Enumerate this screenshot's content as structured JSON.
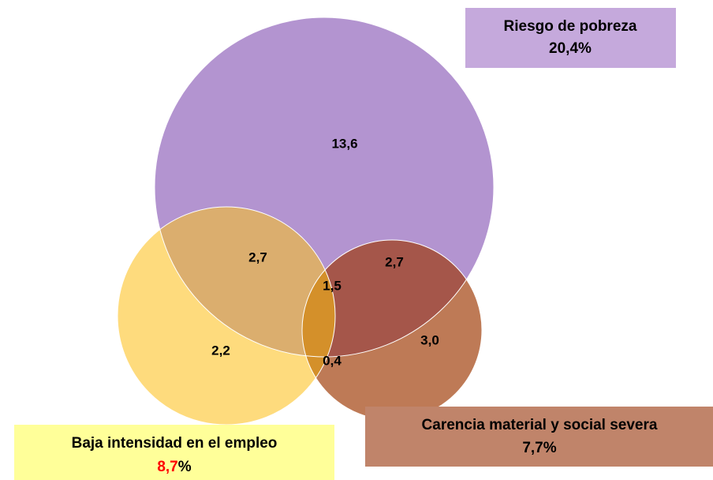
{
  "sets": [
    {
      "name": "Riesgo de pobreza",
      "value": "20,4",
      "unit": "%"
    },
    {
      "name": "Baja intensidad en el empleo",
      "value": "8,7",
      "unit": "%"
    },
    {
      "name": "Carencia material y social severa",
      "value": "7,7",
      "unit": "%"
    }
  ],
  "regions": [
    "13,6",
    "2,7",
    "1,5",
    "2,7",
    "2,2",
    "0,4",
    "3,0"
  ]
}
